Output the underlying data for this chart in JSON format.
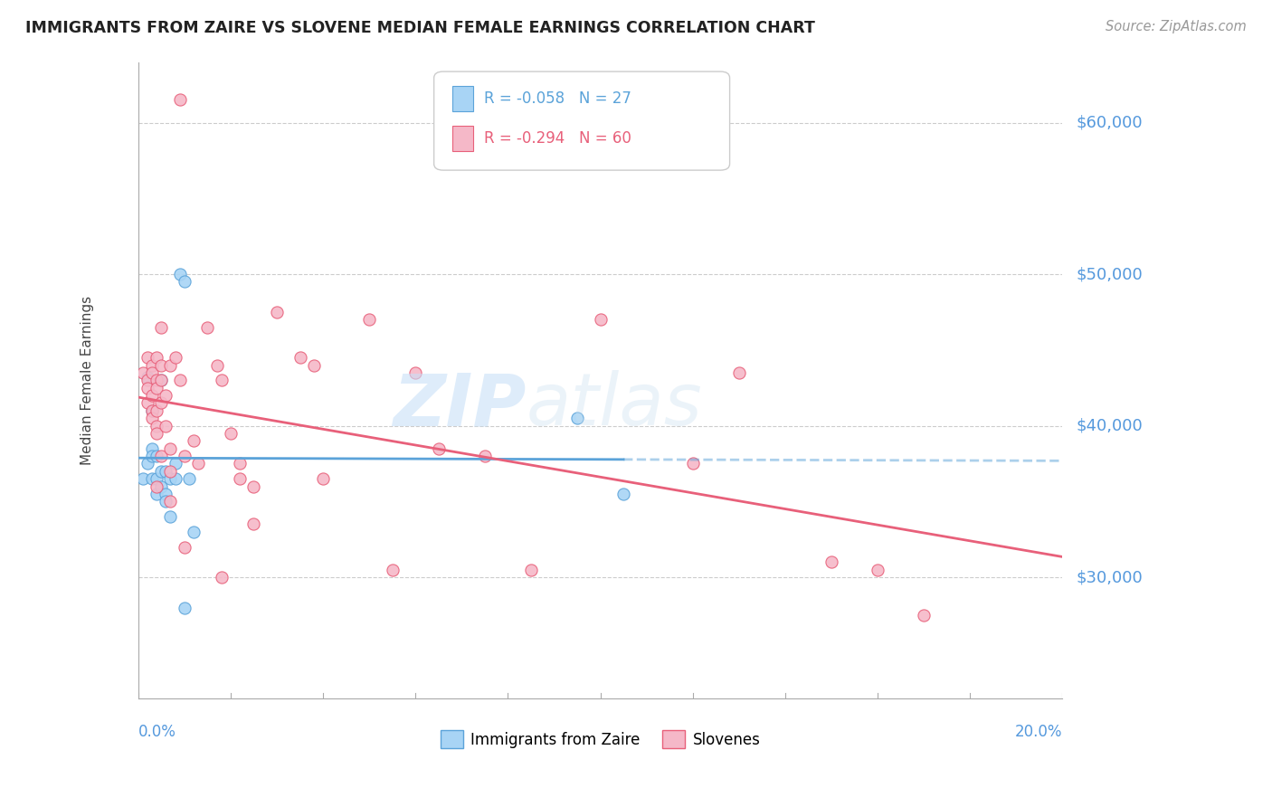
{
  "title": "IMMIGRANTS FROM ZAIRE VS SLOVENE MEDIAN FEMALE EARNINGS CORRELATION CHART",
  "source": "Source: ZipAtlas.com",
  "ylabel": "Median Female Earnings",
  "ytick_labels": [
    "$30,000",
    "$40,000",
    "$50,000",
    "$60,000"
  ],
  "ytick_values": [
    30000,
    40000,
    50000,
    60000
  ],
  "ylim": [
    22000,
    64000
  ],
  "xlim": [
    0.0,
    0.2
  ],
  "legend_labels_bottom": [
    "Immigrants from Zaire",
    "Slovenes"
  ],
  "blue_color": "#A8D4F5",
  "pink_color": "#F5B8C8",
  "blue_line_color": "#5BA3D9",
  "pink_line_color": "#E8607A",
  "blue_R": -0.058,
  "blue_N": 27,
  "pink_R": -0.294,
  "pink_N": 60,
  "blue_scatter": [
    [
      0.001,
      36500
    ],
    [
      0.002,
      37500
    ],
    [
      0.002,
      43200
    ],
    [
      0.003,
      41000
    ],
    [
      0.003,
      38500
    ],
    [
      0.003,
      38000
    ],
    [
      0.003,
      36500
    ],
    [
      0.004,
      38000
    ],
    [
      0.004,
      36500
    ],
    [
      0.004,
      35500
    ],
    [
      0.005,
      43000
    ],
    [
      0.005,
      37000
    ],
    [
      0.005,
      36000
    ],
    [
      0.006,
      37000
    ],
    [
      0.006,
      35500
    ],
    [
      0.006,
      35000
    ],
    [
      0.007,
      36500
    ],
    [
      0.007,
      34000
    ],
    [
      0.008,
      36500
    ],
    [
      0.008,
      37500
    ],
    [
      0.009,
      50000
    ],
    [
      0.01,
      49500
    ],
    [
      0.01,
      28000
    ],
    [
      0.011,
      36500
    ],
    [
      0.012,
      33000
    ],
    [
      0.095,
      40500
    ],
    [
      0.105,
      35500
    ]
  ],
  "pink_scatter": [
    [
      0.001,
      43500
    ],
    [
      0.002,
      44500
    ],
    [
      0.002,
      43000
    ],
    [
      0.002,
      42500
    ],
    [
      0.002,
      41500
    ],
    [
      0.003,
      44000
    ],
    [
      0.003,
      43500
    ],
    [
      0.003,
      42000
    ],
    [
      0.003,
      41000
    ],
    [
      0.003,
      40500
    ],
    [
      0.004,
      44500
    ],
    [
      0.004,
      43000
    ],
    [
      0.004,
      42500
    ],
    [
      0.004,
      41000
    ],
    [
      0.004,
      40000
    ],
    [
      0.004,
      39500
    ],
    [
      0.004,
      36000
    ],
    [
      0.005,
      46500
    ],
    [
      0.005,
      44000
    ],
    [
      0.005,
      43000
    ],
    [
      0.005,
      41500
    ],
    [
      0.005,
      38000
    ],
    [
      0.006,
      42000
    ],
    [
      0.006,
      40000
    ],
    [
      0.007,
      44000
    ],
    [
      0.007,
      38500
    ],
    [
      0.007,
      37000
    ],
    [
      0.007,
      35000
    ],
    [
      0.008,
      44500
    ],
    [
      0.009,
      43000
    ],
    [
      0.009,
      61500
    ],
    [
      0.01,
      38000
    ],
    [
      0.01,
      32000
    ],
    [
      0.012,
      39000
    ],
    [
      0.013,
      37500
    ],
    [
      0.015,
      46500
    ],
    [
      0.017,
      44000
    ],
    [
      0.018,
      43000
    ],
    [
      0.018,
      30000
    ],
    [
      0.02,
      39500
    ],
    [
      0.022,
      37500
    ],
    [
      0.022,
      36500
    ],
    [
      0.025,
      36000
    ],
    [
      0.025,
      33500
    ],
    [
      0.03,
      47500
    ],
    [
      0.035,
      44500
    ],
    [
      0.038,
      44000
    ],
    [
      0.04,
      36500
    ],
    [
      0.05,
      47000
    ],
    [
      0.055,
      30500
    ],
    [
      0.06,
      43500
    ],
    [
      0.065,
      38500
    ],
    [
      0.075,
      38000
    ],
    [
      0.085,
      30500
    ],
    [
      0.1,
      47000
    ],
    [
      0.12,
      37500
    ],
    [
      0.13,
      43500
    ],
    [
      0.15,
      31000
    ],
    [
      0.16,
      30500
    ],
    [
      0.17,
      27500
    ]
  ]
}
